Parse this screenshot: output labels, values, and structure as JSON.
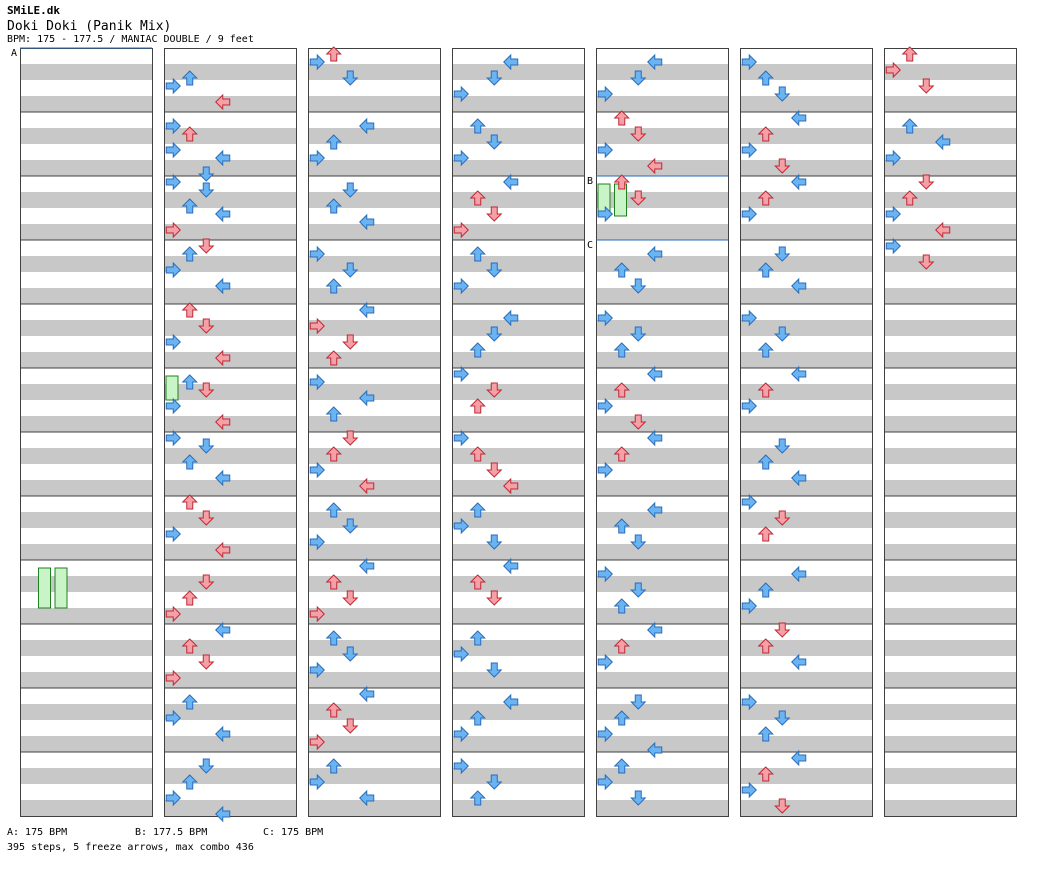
{
  "header": {
    "author": "SMiLE.dk",
    "title": "Doki Doki (Panik Mix)",
    "meta": "BPM: 175 - 177.5 / MANIAC DOUBLE / 9 feet"
  },
  "bpm_markers": [
    {
      "label": "A",
      "column": 0,
      "measure": 0
    },
    {
      "label": "B",
      "column": 4,
      "measure": 2
    },
    {
      "label": "C",
      "column": 4,
      "measure": 3
    }
  ],
  "footer": {
    "bpms": [
      "A: 175 BPM",
      "B: 177.5 BPM",
      "C: 175 BPM"
    ],
    "summary": "395 steps, 5 freeze arrows, max combo 436"
  },
  "colors": {
    "stripe": "#c8c8c8",
    "blue_fill": "#6ab4f4",
    "blue_stroke": "#2a6cb8",
    "red_fill": "#f4a0a8",
    "red_stroke": "#c02830",
    "freeze_fill": "#c8f4c8",
    "freeze_stroke": "#208020",
    "bpm_line": "#2a6cb8"
  },
  "lanes": [
    "P1-left",
    "P1-down",
    "P1-up",
    "P1-right",
    "P2-left",
    "P2-down",
    "P2-up",
    "P2-right"
  ],
  "chart_data": {
    "type": "step-chart",
    "columns": 7,
    "measures_per_column": 12,
    "beats_per_measure": 4,
    "lane_count": 8,
    "arrow_rows": [
      [
        1,
        0,
        3,
        1
      ],
      [
        1,
        0,
        4,
        0
      ],
      [
        1,
        0,
        6,
        3
      ],
      [
        1,
        1,
        1,
        0
      ],
      [
        1,
        1,
        2,
        1
      ],
      [
        1,
        1,
        4,
        0
      ],
      [
        1,
        1,
        5,
        3
      ],
      [
        1,
        1,
        7,
        2
      ],
      [
        1,
        2,
        0,
        0
      ],
      [
        1,
        2,
        1,
        2
      ],
      [
        1,
        2,
        3,
        1
      ],
      [
        1,
        2,
        4,
        3
      ],
      [
        1,
        2,
        6,
        0
      ],
      [
        1,
        3,
        0,
        2
      ],
      [
        1,
        3,
        1,
        1
      ],
      [
        1,
        3,
        3,
        0
      ],
      [
        1,
        3,
        5,
        3
      ],
      [
        1,
        4,
        0,
        1
      ],
      [
        1,
        4,
        2,
        2
      ],
      [
        1,
        4,
        4,
        0
      ],
      [
        1,
        4,
        6,
        3
      ],
      [
        1,
        5,
        1,
        1
      ],
      [
        1,
        5,
        2,
        2
      ],
      [
        1,
        5,
        4,
        0
      ],
      [
        1,
        5,
        6,
        3
      ],
      [
        1,
        6,
        0,
        0
      ],
      [
        1,
        6,
        1,
        2
      ],
      [
        1,
        6,
        3,
        1
      ],
      [
        1,
        6,
        5,
        3
      ],
      [
        1,
        7,
        0,
        1
      ],
      [
        1,
        7,
        2,
        2
      ],
      [
        1,
        7,
        4,
        0
      ],
      [
        1,
        7,
        6,
        3
      ],
      [
        1,
        8,
        2,
        2
      ],
      [
        1,
        8,
        4,
        1
      ],
      [
        1,
        8,
        6,
        0
      ],
      [
        1,
        9,
        0,
        3
      ],
      [
        1,
        9,
        2,
        1
      ],
      [
        1,
        9,
        4,
        2
      ],
      [
        1,
        9,
        6,
        0
      ],
      [
        1,
        10,
        1,
        1
      ],
      [
        1,
        10,
        3,
        0
      ],
      [
        1,
        10,
        5,
        3
      ],
      [
        1,
        11,
        1,
        2
      ],
      [
        1,
        11,
        3,
        1
      ],
      [
        1,
        11,
        5,
        0
      ],
      [
        1,
        11,
        7,
        3
      ],
      [
        2,
        0,
        0,
        1
      ],
      [
        2,
        0,
        1,
        0
      ],
      [
        2,
        0,
        3,
        2
      ],
      [
        2,
        1,
        1,
        3
      ],
      [
        2,
        1,
        3,
        1
      ],
      [
        2,
        1,
        5,
        0
      ],
      [
        2,
        2,
        1,
        2
      ],
      [
        2,
        2,
        3,
        1
      ],
      [
        2,
        2,
        5,
        3
      ],
      [
        2,
        3,
        1,
        0
      ],
      [
        2,
        3,
        3,
        2
      ],
      [
        2,
        3,
        5,
        1
      ],
      [
        2,
        4,
        0,
        3
      ],
      [
        2,
        4,
        2,
        0
      ],
      [
        2,
        4,
        4,
        2
      ],
      [
        2,
        4,
        6,
        1
      ],
      [
        2,
        5,
        1,
        0
      ],
      [
        2,
        5,
        3,
        3
      ],
      [
        2,
        5,
        5,
        1
      ],
      [
        2,
        6,
        0,
        2
      ],
      [
        2,
        6,
        2,
        1
      ],
      [
        2,
        6,
        4,
        0
      ],
      [
        2,
        6,
        6,
        3
      ],
      [
        2,
        7,
        1,
        1
      ],
      [
        2,
        7,
        3,
        2
      ],
      [
        2,
        7,
        5,
        0
      ],
      [
        2,
        8,
        0,
        3
      ],
      [
        2,
        8,
        2,
        1
      ],
      [
        2,
        8,
        4,
        2
      ],
      [
        2,
        8,
        6,
        0
      ],
      [
        2,
        9,
        1,
        1
      ],
      [
        2,
        9,
        3,
        2
      ],
      [
        2,
        9,
        5,
        0
      ],
      [
        2,
        10,
        0,
        3
      ],
      [
        2,
        10,
        2,
        1
      ],
      [
        2,
        10,
        4,
        2
      ],
      [
        2,
        10,
        6,
        0
      ],
      [
        2,
        11,
        1,
        1
      ],
      [
        2,
        11,
        3,
        0
      ],
      [
        2,
        11,
        5,
        3
      ],
      [
        3,
        0,
        1,
        3
      ],
      [
        3,
        0,
        3,
        2
      ],
      [
        3,
        0,
        5,
        0
      ],
      [
        3,
        1,
        1,
        1
      ],
      [
        3,
        1,
        3,
        2
      ],
      [
        3,
        1,
        5,
        0
      ],
      [
        3,
        2,
        0,
        3
      ],
      [
        3,
        2,
        2,
        1
      ],
      [
        3,
        2,
        4,
        2
      ],
      [
        3,
        2,
        6,
        0
      ],
      [
        3,
        3,
        1,
        1
      ],
      [
        3,
        3,
        3,
        2
      ],
      [
        3,
        3,
        5,
        0
      ],
      [
        3,
        4,
        1,
        3
      ],
      [
        3,
        4,
        3,
        2
      ],
      [
        3,
        4,
        5,
        1
      ],
      [
        3,
        5,
        0,
        0
      ],
      [
        3,
        5,
        2,
        2
      ],
      [
        3,
        5,
        4,
        1
      ],
      [
        3,
        6,
        0,
        0
      ],
      [
        3,
        6,
        2,
        1
      ],
      [
        3,
        6,
        4,
        2
      ],
      [
        3,
        6,
        6,
        3
      ],
      [
        3,
        7,
        1,
        1
      ],
      [
        3,
        7,
        3,
        0
      ],
      [
        3,
        7,
        5,
        2
      ],
      [
        3,
        8,
        0,
        3
      ],
      [
        3,
        8,
        2,
        1
      ],
      [
        3,
        8,
        4,
        2
      ],
      [
        3,
        9,
        1,
        1
      ],
      [
        3,
        9,
        3,
        0
      ],
      [
        3,
        9,
        5,
        2
      ],
      [
        3,
        10,
        1,
        3
      ],
      [
        3,
        10,
        3,
        1
      ],
      [
        3,
        10,
        5,
        0
      ],
      [
        3,
        11,
        1,
        0
      ],
      [
        3,
        11,
        3,
        2
      ],
      [
        3,
        11,
        5,
        1
      ],
      [
        4,
        0,
        1,
        3
      ],
      [
        4,
        0,
        3,
        2
      ],
      [
        4,
        0,
        5,
        0
      ],
      [
        4,
        1,
        0,
        1
      ],
      [
        4,
        1,
        2,
        2
      ],
      [
        4,
        1,
        4,
        0
      ],
      [
        4,
        1,
        6,
        3
      ],
      [
        4,
        2,
        0,
        1
      ],
      [
        4,
        2,
        2,
        2
      ],
      [
        4,
        2,
        4,
        0
      ],
      [
        4,
        3,
        1,
        3
      ],
      [
        4,
        3,
        3,
        1
      ],
      [
        4,
        3,
        5,
        2
      ],
      [
        4,
        4,
        1,
        0
      ],
      [
        4,
        4,
        3,
        2
      ],
      [
        4,
        4,
        5,
        1
      ],
      [
        4,
        5,
        0,
        3
      ],
      [
        4,
        5,
        2,
        1
      ],
      [
        4,
        5,
        4,
        0
      ],
      [
        4,
        5,
        6,
        2
      ],
      [
        4,
        6,
        0,
        3
      ],
      [
        4,
        6,
        2,
        1
      ],
      [
        4,
        6,
        4,
        0
      ],
      [
        4,
        7,
        1,
        3
      ],
      [
        4,
        7,
        3,
        1
      ],
      [
        4,
        7,
        5,
        2
      ],
      [
        4,
        8,
        1,
        0
      ],
      [
        4,
        8,
        3,
        2
      ],
      [
        4,
        8,
        5,
        1
      ],
      [
        4,
        9,
        0,
        3
      ],
      [
        4,
        9,
        2,
        1
      ],
      [
        4,
        9,
        4,
        0
      ],
      [
        4,
        10,
        1,
        2
      ],
      [
        4,
        10,
        3,
        1
      ],
      [
        4,
        10,
        5,
        0
      ],
      [
        4,
        10,
        7,
        3
      ],
      [
        4,
        11,
        1,
        1
      ],
      [
        4,
        11,
        3,
        0
      ],
      [
        4,
        11,
        5,
        2
      ],
      [
        5,
        0,
        1,
        0
      ],
      [
        5,
        0,
        3,
        1
      ],
      [
        5,
        0,
        5,
        2
      ],
      [
        5,
        1,
        0,
        3
      ],
      [
        5,
        1,
        2,
        1
      ],
      [
        5,
        1,
        4,
        0
      ],
      [
        5,
        1,
        6,
        2
      ],
      [
        5,
        2,
        0,
        3
      ],
      [
        5,
        2,
        2,
        1
      ],
      [
        5,
        2,
        4,
        0
      ],
      [
        5,
        3,
        1,
        2
      ],
      [
        5,
        3,
        3,
        1
      ],
      [
        5,
        3,
        5,
        3
      ],
      [
        5,
        4,
        1,
        0
      ],
      [
        5,
        4,
        3,
        2
      ],
      [
        5,
        4,
        5,
        1
      ],
      [
        5,
        5,
        0,
        3
      ],
      [
        5,
        5,
        2,
        1
      ],
      [
        5,
        5,
        4,
        0
      ],
      [
        5,
        6,
        1,
        2
      ],
      [
        5,
        6,
        3,
        1
      ],
      [
        5,
        6,
        5,
        3
      ],
      [
        5,
        7,
        0,
        0
      ],
      [
        5,
        7,
        2,
        2
      ],
      [
        5,
        7,
        4,
        1
      ],
      [
        5,
        8,
        1,
        3
      ],
      [
        5,
        8,
        3,
        1
      ],
      [
        5,
        8,
        5,
        0
      ],
      [
        5,
        9,
        0,
        2
      ],
      [
        5,
        9,
        2,
        1
      ],
      [
        5,
        9,
        4,
        3
      ],
      [
        5,
        10,
        1,
        0
      ],
      [
        5,
        10,
        3,
        2
      ],
      [
        5,
        10,
        5,
        1
      ],
      [
        5,
        11,
        0,
        3
      ],
      [
        5,
        11,
        2,
        1
      ],
      [
        5,
        11,
        4,
        0
      ],
      [
        5,
        11,
        6,
        2
      ],
      [
        6,
        0,
        0,
        1
      ],
      [
        6,
        0,
        2,
        0
      ],
      [
        6,
        0,
        4,
        2
      ],
      [
        6,
        1,
        1,
        1
      ],
      [
        6,
        1,
        3,
        3
      ],
      [
        6,
        1,
        5,
        0
      ],
      [
        6,
        2,
        0,
        2
      ],
      [
        6,
        2,
        2,
        1
      ],
      [
        6,
        2,
        4,
        0
      ],
      [
        6,
        2,
        6,
        3
      ],
      [
        6,
        3,
        0,
        0
      ],
      [
        6,
        3,
        2,
        2
      ]
    ],
    "freezes": [
      [
        0,
        8,
        1,
        5
      ],
      [
        0,
        8,
        1,
        5
      ],
      [
        1,
        5,
        0,
        3
      ],
      [
        4,
        2,
        0,
        4
      ],
      [
        4,
        2,
        0,
        4
      ]
    ]
  }
}
